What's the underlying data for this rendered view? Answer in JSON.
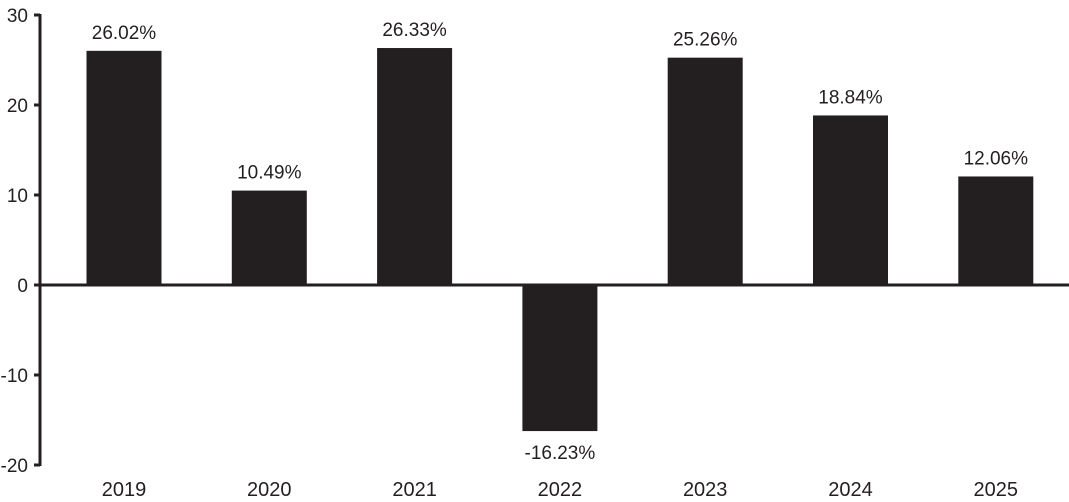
{
  "chart_data": {
    "type": "bar",
    "title": "",
    "xlabel": "",
    "ylabel": "",
    "categories": [
      "2019",
      "2020",
      "2021",
      "2022",
      "2023",
      "2024",
      "2025"
    ],
    "values": [
      26.02,
      10.49,
      26.33,
      -16.23,
      25.26,
      18.84,
      12.06
    ],
    "data_labels": [
      "26.02%",
      "10.49%",
      "26.33%",
      "-16.23%",
      "25.26%",
      "18.84%",
      "12.06%"
    ],
    "ylim": [
      -20,
      30
    ],
    "yticks": [
      -20,
      -10,
      0,
      10,
      20,
      30
    ],
    "ytick_labels": [
      "-20",
      "-10",
      "0",
      "10",
      "20",
      "30"
    ],
    "grid": false,
    "legend": "none",
    "bar_color": "#231f20",
    "axis_color": "#231f20"
  }
}
